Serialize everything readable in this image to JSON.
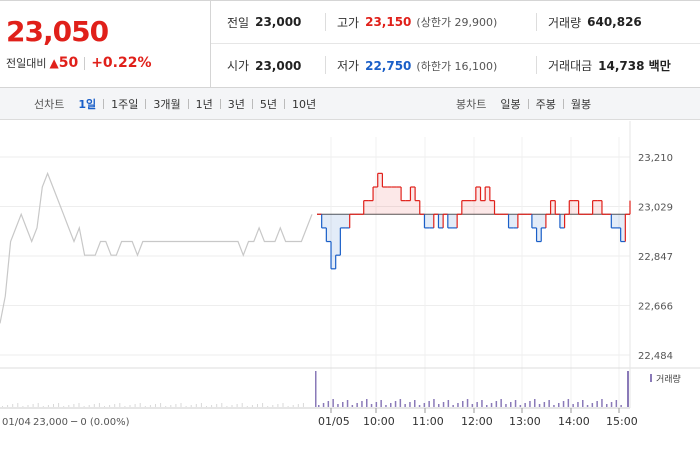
{
  "quote": {
    "price": "23,050",
    "change_label": "전일대비",
    "change_icon": "up-triangle-icon",
    "change_symbol": "▲",
    "change_value": "50",
    "change_pct": "+0.22%",
    "colors": {
      "up": "#e0201a",
      "down": "#1a5fc8"
    }
  },
  "info": {
    "prev_close": {
      "label": "전일",
      "value": "23,000"
    },
    "high": {
      "label": "고가",
      "value": "23,150",
      "limit_text": "(상한가 29,900)"
    },
    "volume": {
      "label": "거래량",
      "value": "640,826"
    },
    "open": {
      "label": "시가",
      "value": "23,000"
    },
    "low": {
      "label": "저가",
      "value": "22,750",
      "limit_text": "(하한가 16,100)"
    },
    "trade_amount": {
      "label": "거래대금",
      "value": "14,738 백만"
    }
  },
  "toolbar": {
    "line_chart_title": "선차트",
    "periods": [
      "1일",
      "1주일",
      "3개월",
      "1년",
      "3년",
      "5년",
      "10년"
    ],
    "active_period": "1일",
    "candle_chart_title": "봉차트",
    "candle_periods": [
      "일봉",
      "주봉",
      "월봉"
    ]
  },
  "chart_data": {
    "type": "line",
    "title": "",
    "reference_price": 23000,
    "y_ticks": [
      "23,210",
      "23,029",
      "22,847",
      "22,666",
      "22,484"
    ],
    "ylim": [
      22484,
      23210
    ],
    "volume_label": "거래량",
    "prev_day_label": "01/04",
    "prev_day_info": "23,000 ─ 0 (0.00%)",
    "x_ticks": [
      "01/05",
      "10:00",
      "11:00",
      "12:00",
      "13:00",
      "14:00",
      "15:00"
    ],
    "prev_day_series": {
      "name": "01/04",
      "values": [
        22600,
        22700,
        22900,
        22950,
        23000,
        22950,
        22900,
        22950,
        23100,
        23150,
        23100,
        23050,
        23000,
        22950,
        22900,
        22950,
        22850,
        22850,
        22850,
        22900,
        22900,
        22850,
        22850,
        22900,
        22900,
        22900,
        22850,
        22900,
        22900,
        22900,
        22900,
        22900,
        22900,
        22900,
        22900,
        22900,
        22900,
        22900,
        22900,
        22900,
        22900,
        22900,
        22900,
        22900,
        22900,
        22900,
        22850,
        22900,
        22900,
        22950,
        22900,
        22900,
        22900,
        22950,
        22900,
        22900,
        22900,
        22900,
        22950,
        23000
      ]
    },
    "today_series": {
      "name": "01/05",
      "values": [
        23000,
        22950,
        22900,
        22800,
        22850,
        22950,
        22950,
        23000,
        23000,
        23000,
        23050,
        23050,
        23100,
        23150,
        23100,
        23100,
        23100,
        23100,
        23050,
        23050,
        23100,
        23050,
        23000,
        22950,
        22950,
        23000,
        22950,
        23000,
        22950,
        22950,
        23000,
        23050,
        23050,
        23050,
        23100,
        23050,
        23100,
        23050,
        23000,
        23000,
        23000,
        22950,
        22950,
        23000,
        23000,
        23000,
        22950,
        22900,
        22950,
        23000,
        23050,
        23000,
        22950,
        23000,
        23050,
        23050,
        23000,
        23000,
        23000,
        23050,
        23050,
        23000,
        23000,
        22950,
        22950,
        22900,
        23000,
        23050
      ]
    }
  }
}
